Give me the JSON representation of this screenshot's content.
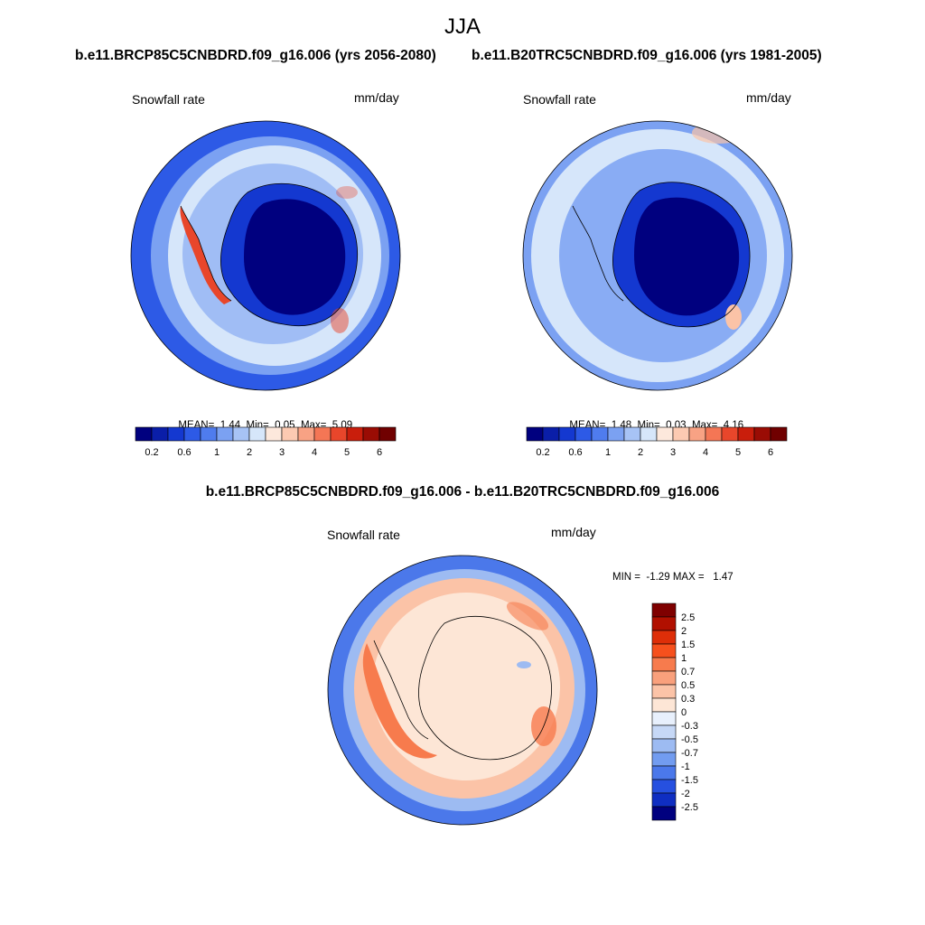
{
  "title": "JJA",
  "panels": [
    {
      "id": "future",
      "title": "b.e11.BRCP85C5CNBDRD.f09_g16.006 (yrs 2056-2080)",
      "variable": "Snowfall rate",
      "units": "mm/day",
      "stats": {
        "mean_label": "MEAN=",
        "mean": "1.44",
        "min_label": "Min=",
        "min": "0.05",
        "max_label": "Max=",
        "max": "5.09"
      }
    },
    {
      "id": "historical",
      "title": "b.e11.B20TRC5CNBDRD.f09_g16.006 (yrs 1981-2005)",
      "variable": "Snowfall rate",
      "units": "mm/day",
      "stats": {
        "mean_label": "MEAN=",
        "mean": "1.48",
        "min_label": "Min=",
        "min": "0.03",
        "max_label": "Max=",
        "max": "4.16"
      }
    }
  ],
  "diff_panel": {
    "title": "b.e11.BRCP85C5CNBDRD.f09_g16.006 - b.e11.B20TRC5CNBDRD.f09_g16.006",
    "variable": "Snowfall rate",
    "units": "mm/day",
    "stats": {
      "min_label": "MIN =",
      "min": "-1.29",
      "max_label": "MAX =",
      "max": "1.47"
    }
  },
  "colorbar_seq": {
    "colors": [
      "#00007f",
      "#0a1ea8",
      "#1438d0",
      "#2d5ae6",
      "#4f7cee",
      "#7ba1f2",
      "#a7c3f5",
      "#d6e6fa",
      "#fde8dc",
      "#fccab2",
      "#f8a284",
      "#f47655",
      "#e8462b",
      "#c91e0c",
      "#9a0c04",
      "#700000"
    ],
    "tick_labels": [
      "0.2",
      "0.6",
      "1",
      "2",
      "3",
      "4",
      "5",
      "6"
    ]
  },
  "colorbar_diff": {
    "colors": [
      "#7f0000",
      "#b11000",
      "#de2e08",
      "#f6501d",
      "#f77b4d",
      "#f9a07c",
      "#fbc3a7",
      "#fde6d6",
      "#e8f0fc",
      "#c6d8f6",
      "#9dbbf2",
      "#729cf0",
      "#4b78ea",
      "#2650e0",
      "#0f2ec2",
      "#00007f"
    ],
    "tick_labels": [
      "2.5",
      "2",
      "1.5",
      "1",
      "0.7",
      "0.5",
      "0.3",
      "0",
      "-0.3",
      "-0.5",
      "-0.7",
      "-1",
      "-1.5",
      "-2",
      "-2.5"
    ]
  },
  "colors": {
    "ocean_outer": "#2d5ae6",
    "ocean_mid": "#7ba1f2",
    "ocean_inner": "#d6e6fa",
    "continent_deep": "#00007f",
    "continent_edge": "#1438d0",
    "peninsula_high": "#e8462b",
    "diff_base": "#fde6d6",
    "diff_ring": "#fbc3a7",
    "diff_pos": "#f77b4d",
    "diff_neg_outer": "#4b78ea",
    "diff_neg_mid": "#9dbbf2"
  }
}
